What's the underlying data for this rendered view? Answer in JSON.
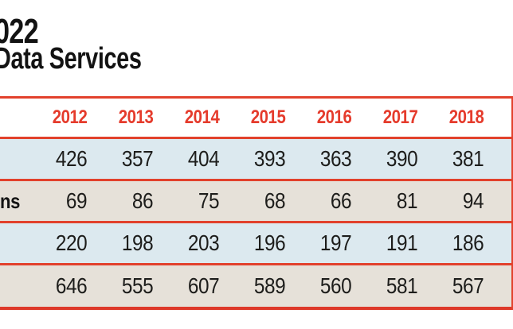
{
  "title": {
    "line1": "022",
    "line2": "Data Services"
  },
  "colors": {
    "accent_red_text": "#e53b2c",
    "rule_red": "#e2412c",
    "row_blue": "#dce9ef",
    "row_beige": "#e6e1d9",
    "value_text": "#1d1d1b",
    "title_text": "#131313",
    "background": "#ffffff"
  },
  "table": {
    "year_headers": [
      "2012",
      "2013",
      "2014",
      "2015",
      "2016",
      "2017",
      "2018"
    ],
    "rows": [
      {
        "label": "",
        "tone": "blue",
        "values": [
          426,
          357,
          404,
          393,
          363,
          390,
          381
        ]
      },
      {
        "label": "ns",
        "tone": "beige",
        "values": [
          69,
          86,
          75,
          68,
          66,
          81,
          94
        ]
      },
      {
        "label": "",
        "tone": "blue",
        "values": [
          220,
          198,
          203,
          196,
          197,
          191,
          186
        ]
      },
      {
        "label": "",
        "tone": "beige",
        "values": [
          646,
          555,
          607,
          589,
          560,
          581,
          567
        ]
      }
    ]
  },
  "chart_data": {
    "type": "table",
    "title": "022 / Data Services (cropped)",
    "columns": [
      "2012",
      "2013",
      "2014",
      "2015",
      "2016",
      "2017",
      "2018"
    ],
    "rows": [
      {
        "label": "",
        "values": [
          426,
          357,
          404,
          393,
          363,
          390,
          381
        ]
      },
      {
        "label": "ns",
        "values": [
          69,
          86,
          75,
          68,
          66,
          81,
          94
        ]
      },
      {
        "label": "",
        "values": [
          220,
          198,
          203,
          196,
          197,
          191,
          186
        ]
      },
      {
        "label": "",
        "values": [
          646,
          555,
          607,
          589,
          560,
          581,
          567
        ]
      }
    ]
  }
}
